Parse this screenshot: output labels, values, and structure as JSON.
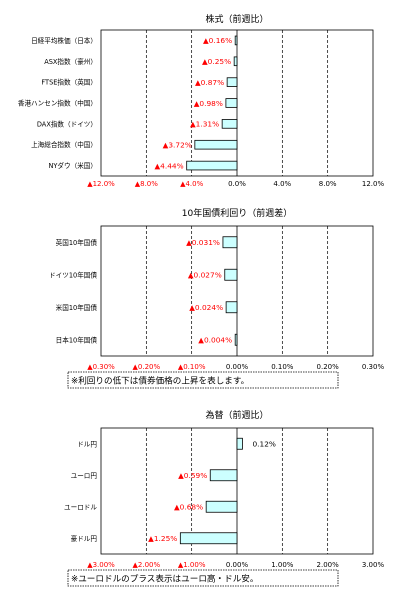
{
  "chart_data": [
    {
      "type": "bar",
      "orientation": "horizontal",
      "title": "株式（前週比）",
      "categories": [
        "日経平均株価（日本）",
        "ASX指数（豪州）",
        "FTSE指数（英国）",
        "香港ハンセン指数（中国）",
        "DAX指数（ドイツ）",
        "上海総合指数（中国）",
        "NYダウ（米国）"
      ],
      "values": [
        -0.16,
        -0.25,
        -0.87,
        -0.98,
        -1.31,
        -3.72,
        -4.44
      ],
      "value_labels": [
        "▲0.16%",
        "▲0.25%",
        "▲0.87%",
        "▲0.98%",
        "▲1.31%",
        "▲3.72%",
        "▲4.44%"
      ],
      "xlim": [
        -12,
        12
      ],
      "ticks": [
        -12,
        -8,
        -4,
        0,
        4,
        8,
        12
      ],
      "tick_labels": [
        "▲12.0%",
        "▲8.0%",
        "▲4.0%",
        "0.0%",
        "4.0%",
        "8.0%",
        "12.0%"
      ],
      "grid": "vertical dashed",
      "bar_color": "#ccffff"
    },
    {
      "type": "bar",
      "orientation": "horizontal",
      "title": "10年国債利回り（前週差）",
      "categories": [
        "英国10年国債",
        "ドイツ10年国債",
        "米国10年国債",
        "日本10年国債"
      ],
      "values": [
        -0.031,
        -0.027,
        -0.024,
        -0.004
      ],
      "value_labels": [
        "▲0.031%",
        "▲0.027%",
        "▲0.024%",
        "▲0.004%"
      ],
      "xlim": [
        -0.3,
        0.3
      ],
      "ticks": [
        -0.3,
        -0.2,
        -0.1,
        0,
        0.1,
        0.2,
        0.3
      ],
      "tick_labels": [
        "▲0.30%",
        "▲0.20%",
        "▲0.10%",
        "0.00%",
        "0.10%",
        "0.20%",
        "0.30%"
      ],
      "grid": "vertical dashed",
      "bar_color": "#ccffff",
      "note": "※利回りの低下は債券価格の上昇を表します。"
    },
    {
      "type": "bar",
      "orientation": "horizontal",
      "title": "為替（前週比）",
      "categories": [
        "ドル円",
        "ユーロ円",
        "ユーロドル",
        "豪ドル円"
      ],
      "values": [
        0.12,
        -0.59,
        -0.68,
        -1.25
      ],
      "value_labels": [
        "0.12%",
        "▲0.59%",
        "▲0.68%",
        "▲1.25%"
      ],
      "xlim": [
        -3,
        3
      ],
      "ticks": [
        -3,
        -2,
        -1,
        0,
        1,
        2,
        3
      ],
      "tick_labels": [
        "▲3.00%",
        "▲2.00%",
        "▲1.00%",
        "0.00%",
        "1.00%",
        "2.00%",
        "3.00%"
      ],
      "grid": "vertical dashed",
      "bar_color": "#ccffff",
      "note": "※ユーロドルのプラス表示はユーロ高・ドル安。"
    }
  ]
}
